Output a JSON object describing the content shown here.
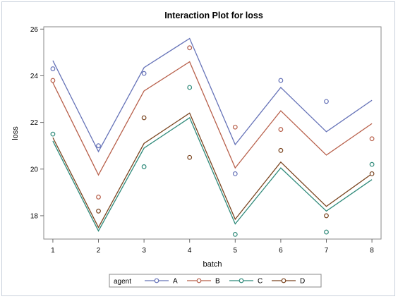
{
  "chart_data": {
    "type": "line",
    "title": "Interaction Plot for loss",
    "xlabel": "batch",
    "ylabel": "loss",
    "x": [
      1,
      2,
      3,
      4,
      5,
      6,
      7,
      8
    ],
    "xlim": [
      0.8,
      8.2
    ],
    "ylim": [
      17.0,
      26.1
    ],
    "yticks": [
      18,
      20,
      22,
      24,
      26
    ],
    "legend": {
      "title": "agent",
      "placement": "bottom"
    },
    "series": [
      {
        "name": "A",
        "color": "#6673b8",
        "fit": [
          24.65,
          20.75,
          24.35,
          25.6,
          21.05,
          23.5,
          21.6,
          22.95
        ],
        "points": [
          24.3,
          21.0,
          24.1,
          25.2,
          19.8,
          23.8,
          22.9,
          null
        ]
      },
      {
        "name": "B",
        "color": "#b8604b",
        "fit": [
          23.7,
          19.75,
          23.35,
          24.6,
          20.05,
          22.5,
          20.6,
          21.95
        ],
        "points": [
          23.8,
          18.8,
          null,
          25.2,
          21.8,
          21.7,
          null,
          21.3
        ]
      },
      {
        "name": "C",
        "color": "#2f8a7a",
        "fit": [
          21.2,
          17.35,
          20.9,
          22.2,
          17.65,
          20.05,
          18.2,
          19.55
        ],
        "points": [
          21.5,
          null,
          20.1,
          23.5,
          17.2,
          null,
          17.3,
          20.2
        ]
      },
      {
        "name": "D",
        "color": "#7a4520",
        "fit": [
          21.35,
          17.5,
          21.1,
          22.4,
          17.85,
          20.3,
          18.4,
          19.8
        ],
        "points": [
          null,
          18.2,
          22.2,
          20.5,
          null,
          20.8,
          18.0,
          19.8
        ]
      }
    ]
  }
}
